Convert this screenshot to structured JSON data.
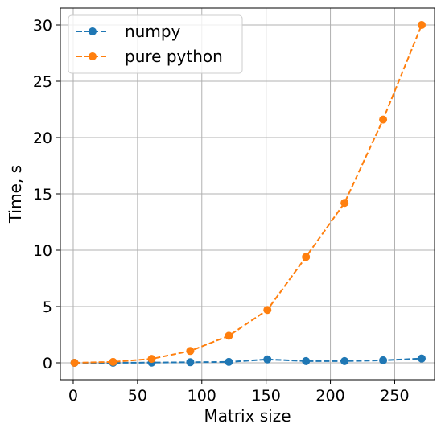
{
  "chart_data": {
    "type": "line",
    "title": "",
    "xlabel": "Matrix size",
    "ylabel": "Time, s",
    "xlim": [
      -10,
      281
    ],
    "ylim": [
      -1.5,
      31.5
    ],
    "xticks": [
      0,
      50,
      100,
      150,
      200,
      250
    ],
    "yticks": [
      0,
      5,
      10,
      15,
      20,
      25,
      30
    ],
    "grid": true,
    "legend_position": "upper-left",
    "x": [
      1,
      31,
      61,
      91,
      121,
      151,
      181,
      211,
      241,
      271
    ],
    "series": [
      {
        "name": "numpy",
        "color": "#1f77b4",
        "line_style": "dashed",
        "marker": "circle",
        "values": [
          0.0,
          0.0,
          0.02,
          0.05,
          0.08,
          0.3,
          0.15,
          0.15,
          0.22,
          0.38
        ]
      },
      {
        "name": "pure python",
        "color": "#ff7f0e",
        "line_style": "dashed",
        "marker": "circle",
        "values": [
          0.0,
          0.08,
          0.35,
          1.05,
          2.4,
          4.7,
          9.4,
          14.2,
          21.6,
          30.0
        ]
      }
    ]
  }
}
